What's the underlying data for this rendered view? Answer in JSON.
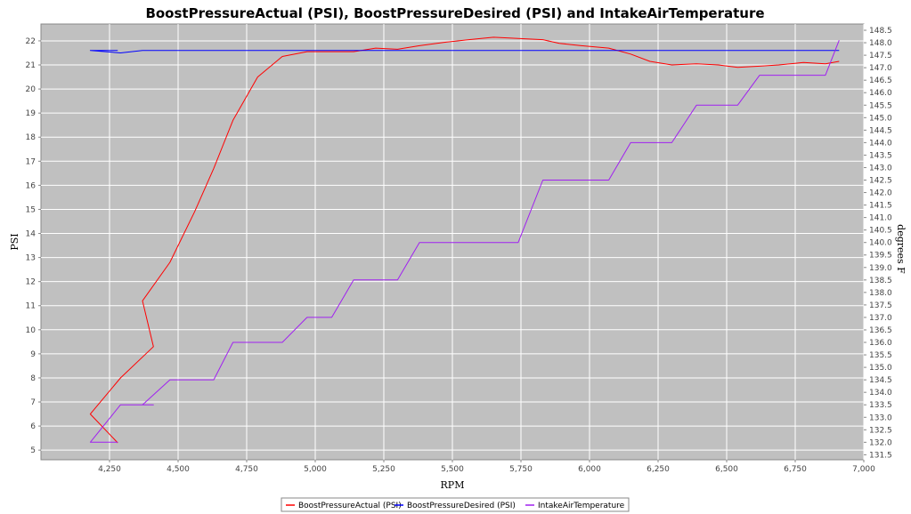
{
  "chart_data": {
    "type": "line",
    "title": "BoostPressureActual (PSI), BoostPressureDesired (PSI) and IntakeAirTemperature",
    "xlabel": "RPM",
    "ylabel": "PSI",
    "ylabel_right": "degrees F",
    "xlim": [
      4000,
      7000
    ],
    "ylim": [
      4.6,
      22.7
    ],
    "ylim_right": [
      131.3,
      148.75
    ],
    "grid": true,
    "legend_position": "bottom-center",
    "x_ticks": [
      {
        "value": 4250,
        "label": "4,250"
      },
      {
        "value": 4500,
        "label": "4,500"
      },
      {
        "value": 4750,
        "label": "4,750"
      },
      {
        "value": 5000,
        "label": "5,000"
      },
      {
        "value": 5250,
        "label": "5,250"
      },
      {
        "value": 5500,
        "label": "5,500"
      },
      {
        "value": 5750,
        "label": "5,750"
      },
      {
        "value": 6000,
        "label": "6,000"
      },
      {
        "value": 6250,
        "label": "6,250"
      },
      {
        "value": 6500,
        "label": "6,500"
      },
      {
        "value": 6750,
        "label": "6,750"
      },
      {
        "value": 7000,
        "label": "7,000"
      }
    ],
    "y_ticks": [
      {
        "value": 5,
        "label": "5"
      },
      {
        "value": 6,
        "label": "6"
      },
      {
        "value": 7,
        "label": "7"
      },
      {
        "value": 8,
        "label": "8"
      },
      {
        "value": 9,
        "label": "9"
      },
      {
        "value": 10,
        "label": "10"
      },
      {
        "value": 11,
        "label": "11"
      },
      {
        "value": 12,
        "label": "12"
      },
      {
        "value": 13,
        "label": "13"
      },
      {
        "value": 14,
        "label": "14"
      },
      {
        "value": 15,
        "label": "15"
      },
      {
        "value": 16,
        "label": "16"
      },
      {
        "value": 17,
        "label": "17"
      },
      {
        "value": 18,
        "label": "18"
      },
      {
        "value": 19,
        "label": "19"
      },
      {
        "value": 20,
        "label": "20"
      },
      {
        "value": 21,
        "label": "21"
      },
      {
        "value": 22,
        "label": "22"
      }
    ],
    "y_ticks_right": [
      {
        "value": 131.5,
        "label": "131.5"
      },
      {
        "value": 132.0,
        "label": "132.0"
      },
      {
        "value": 132.5,
        "label": "132.5"
      },
      {
        "value": 133.0,
        "label": "133.0"
      },
      {
        "value": 133.5,
        "label": "133.5"
      },
      {
        "value": 134.0,
        "label": "134.0"
      },
      {
        "value": 134.5,
        "label": "134.5"
      },
      {
        "value": 135.0,
        "label": "135.0"
      },
      {
        "value": 135.5,
        "label": "135.5"
      },
      {
        "value": 136.0,
        "label": "136.0"
      },
      {
        "value": 136.5,
        "label": "136.5"
      },
      {
        "value": 137.0,
        "label": "137.0"
      },
      {
        "value": 137.5,
        "label": "137.5"
      },
      {
        "value": 138.0,
        "label": "138.0"
      },
      {
        "value": 138.5,
        "label": "138.5"
      },
      {
        "value": 139.0,
        "label": "139.0"
      },
      {
        "value": 139.5,
        "label": "139.5"
      },
      {
        "value": 140.0,
        "label": "140.0"
      },
      {
        "value": 140.5,
        "label": "140.5"
      },
      {
        "value": 141.0,
        "label": "141.0"
      },
      {
        "value": 141.5,
        "label": "141.5"
      },
      {
        "value": 142.0,
        "label": "142.0"
      },
      {
        "value": 142.5,
        "label": "142.5"
      },
      {
        "value": 143.0,
        "label": "143.0"
      },
      {
        "value": 143.5,
        "label": "143.5"
      },
      {
        "value": 144.0,
        "label": "144.0"
      },
      {
        "value": 144.5,
        "label": "144.5"
      },
      {
        "value": 145.0,
        "label": "145.0"
      },
      {
        "value": 145.5,
        "label": "145.5"
      },
      {
        "value": 146.0,
        "label": "146.0"
      },
      {
        "value": 146.5,
        "label": "146.5"
      },
      {
        "value": 147.0,
        "label": "147.0"
      },
      {
        "value": 147.5,
        "label": "147.5"
      },
      {
        "value": 148.0,
        "label": "148.0"
      },
      {
        "value": 148.5,
        "label": "148.5"
      }
    ],
    "series": [
      {
        "name": "BoostPressureActual (PSI)",
        "axis": "left",
        "color": "#ff0000",
        "points": [
          [
            4280,
            5.3
          ],
          [
            4180,
            6.5
          ],
          [
            4290,
            8.0
          ],
          [
            4410,
            9.3
          ],
          [
            4370,
            11.2
          ],
          [
            4470,
            12.8
          ],
          [
            4560,
            14.9
          ],
          [
            4630,
            16.7
          ],
          [
            4700,
            18.7
          ],
          [
            4790,
            20.5
          ],
          [
            4880,
            21.35
          ],
          [
            4970,
            21.55
          ],
          [
            5140,
            21.55
          ],
          [
            5220,
            21.7
          ],
          [
            5300,
            21.65
          ],
          [
            5380,
            21.8
          ],
          [
            5480,
            21.95
          ],
          [
            5560,
            22.05
          ],
          [
            5650,
            22.15
          ],
          [
            5740,
            22.1
          ],
          [
            5830,
            22.05
          ],
          [
            5890,
            21.9
          ],
          [
            5970,
            21.8
          ],
          [
            6070,
            21.7
          ],
          [
            6150,
            21.45
          ],
          [
            6220,
            21.15
          ],
          [
            6300,
            21.0
          ],
          [
            6390,
            21.05
          ],
          [
            6470,
            21.0
          ],
          [
            6540,
            20.9
          ],
          [
            6620,
            20.95
          ],
          [
            6690,
            21.0
          ],
          [
            6780,
            21.1
          ],
          [
            6860,
            21.05
          ],
          [
            6910,
            21.15
          ]
        ]
      },
      {
        "name": "BoostPressureDesired (PSI)",
        "axis": "left",
        "color": "#0000ff",
        "points": [
          [
            4280,
            21.6
          ],
          [
            4180,
            21.6
          ],
          [
            4290,
            21.5
          ],
          [
            4370,
            21.6
          ],
          [
            4410,
            21.6
          ],
          [
            4500,
            21.6
          ],
          [
            5000,
            21.6
          ],
          [
            5500,
            21.6
          ],
          [
            6000,
            21.6
          ],
          [
            6500,
            21.6
          ],
          [
            6910,
            21.6
          ]
        ]
      },
      {
        "name": "IntakeAirTemperature",
        "axis": "right",
        "color": "#a020f0",
        "points": [
          [
            4280,
            132.0
          ],
          [
            4180,
            132.0
          ],
          [
            4290,
            133.5
          ],
          [
            4370,
            133.5
          ],
          [
            4410,
            133.5
          ],
          [
            4370,
            133.5
          ],
          [
            4470,
            134.5
          ],
          [
            4630,
            134.5
          ],
          [
            4700,
            136.0
          ],
          [
            4880,
            136.0
          ],
          [
            4970,
            137.0
          ],
          [
            5060,
            137.0
          ],
          [
            5140,
            138.5
          ],
          [
            5300,
            138.5
          ],
          [
            5380,
            140.0
          ],
          [
            5740,
            140.0
          ],
          [
            5830,
            142.5
          ],
          [
            6070,
            142.5
          ],
          [
            6150,
            144.0
          ],
          [
            6300,
            144.0
          ],
          [
            6390,
            145.5
          ],
          [
            6540,
            145.5
          ],
          [
            6620,
            146.7
          ],
          [
            6860,
            146.7
          ],
          [
            6910,
            148.1
          ]
        ]
      }
    ]
  }
}
